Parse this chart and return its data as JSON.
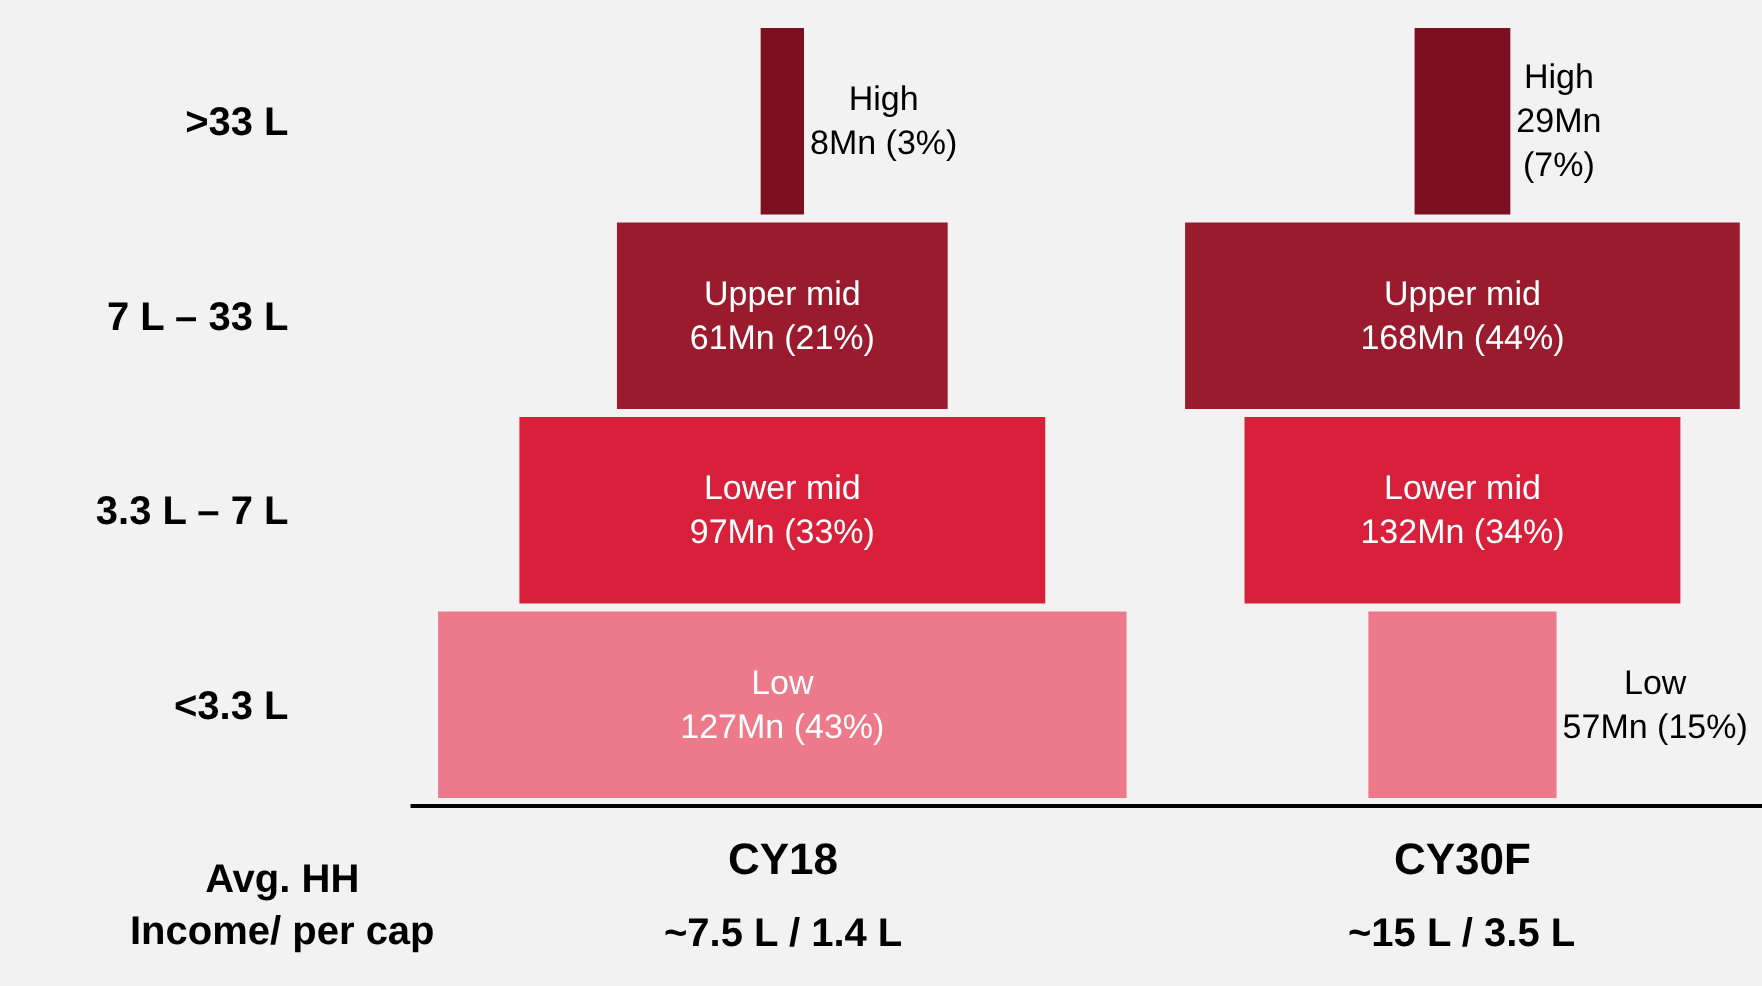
{
  "chart_data": [
    {
      "type": "other",
      "categories": [
        ">33 L",
        "7 L – 33 L",
        "3.3 L – 7 L",
        "<3.3 L"
      ],
      "values": [
        8,
        61,
        97,
        127
      ],
      "colors": [
        "#7a1020",
        "#9b1b2e",
        "#d9203a",
        "#ec7a8a"
      ],
      "value_labels": [
        "High\n8Mn (3%)",
        "Upper mid\n61Mn (21%)",
        "Lower mid\n97Mn (33%)",
        "Low\n127Mn (43%)"
      ],
      "xlabel": "CY18",
      "annotations": [
        "~7.5 L / 1.4 L",
        "Avg. HH\nIncome/ per cap"
      ]
    },
    {
      "type": "other",
      "values": [
        29,
        168,
        132,
        57
      ],
      "colors": [
        "#7a1020",
        "#9b1b2e",
        "#d9203a",
        "#ec7a8a"
      ],
      "value_labels": [
        "High\n29Mn\n(7%)",
        "Upper mid\n168Mn (44%)",
        "Lower mid\n132Mn (34%)",
        "Low\n57Mn (15%)"
      ],
      "xlabel": "CY30F",
      "annotations": [
        "~15 L / 3.5 L"
      ]
    }
  ]
}
